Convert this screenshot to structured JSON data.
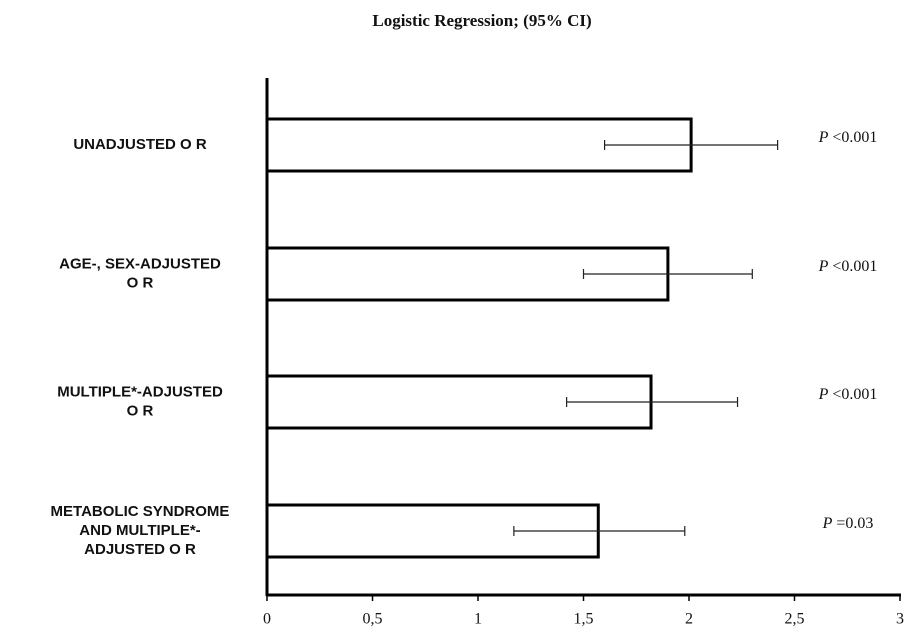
{
  "chart_data": {
    "type": "hbar_errorbar",
    "title": "Logistic Regression; (95% CI)",
    "categories": [
      "UNADJUSTED O R",
      "AGE-, SEX-ADJUSTED\nO R",
      "MULTIPLE*-ADJUSTED\nO R",
      "METABOLIC SYNDROME\nAND MULTIPLE*-\nADJUSTED O R"
    ],
    "series": [
      {
        "color": "#ffffff",
        "values": [
          2.01,
          1.9,
          1.82,
          1.57
        ],
        "ci_low": [
          1.6,
          1.5,
          1.42,
          1.17
        ],
        "ci_high": [
          2.42,
          2.3,
          2.23,
          1.98
        ]
      }
    ],
    "p_labels": [
      {
        "symbol": "P",
        "text": "<0.001"
      },
      {
        "symbol": "P",
        "text": "<0.001"
      },
      {
        "symbol": "P",
        "text": "<0.001"
      },
      {
        "symbol": "P",
        "text": "=0.03"
      }
    ],
    "xlim": [
      0,
      3
    ],
    "xticks": [
      0,
      {
        "value": 0.5,
        "label": "0,5"
      },
      1,
      {
        "value": 1.5,
        "label": "1,5"
      },
      2,
      {
        "value": 2.5,
        "label": "2,5"
      },
      3
    ]
  }
}
